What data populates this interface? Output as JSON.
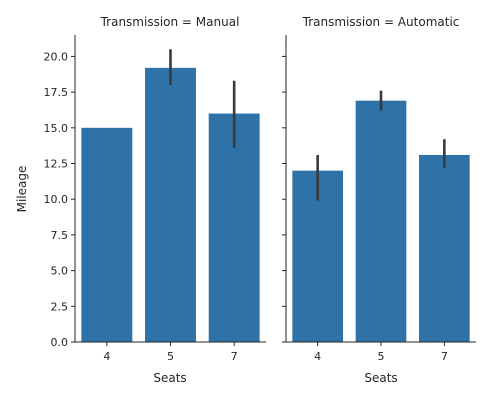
{
  "chart_data": {
    "type": "bar",
    "ylabel": "Mileage",
    "ylim": [
      0,
      21.5
    ],
    "yticks": [
      "0.0",
      "2.5",
      "5.0",
      "7.5",
      "10.0",
      "12.5",
      "15.0",
      "17.5",
      "20.0"
    ],
    "bar_color": "#2e72a8",
    "errorbar_color": "#3a3a3a",
    "grid": false,
    "panels": [
      {
        "title": "Transmission = Manual",
        "xlabel": "Seats",
        "categories": [
          "4",
          "5",
          "7"
        ],
        "values": [
          15.0,
          19.2,
          16.0
        ],
        "ci_low": [
          15.0,
          18.0,
          13.6
        ],
        "ci_high": [
          15.0,
          20.5,
          18.3
        ]
      },
      {
        "title": "Transmission = Automatic",
        "xlabel": "Seats",
        "categories": [
          "4",
          "5",
          "7"
        ],
        "values": [
          12.0,
          16.9,
          13.1
        ],
        "ci_low": [
          9.9,
          16.2,
          12.2
        ],
        "ci_high": [
          13.1,
          17.6,
          14.2
        ]
      }
    ]
  }
}
